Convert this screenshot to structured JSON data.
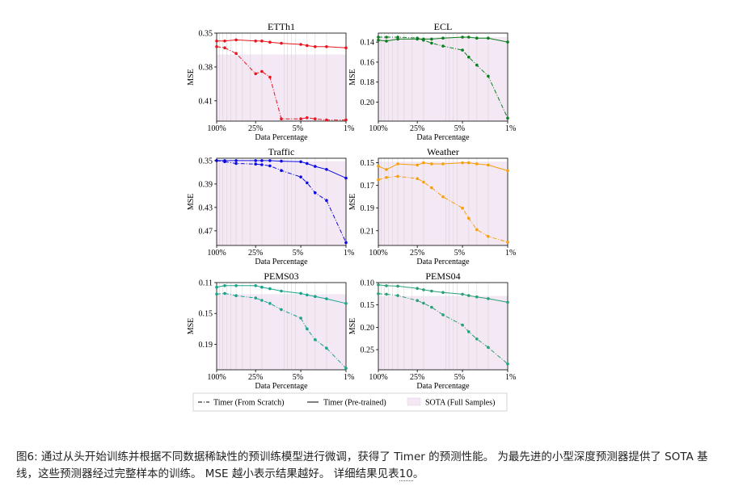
{
  "figure": {
    "legend": {
      "scratch": "Timer (From Scratch)",
      "pretrained": "Timer (Pre-trained)",
      "sota": "SOTA (Full Samples)"
    },
    "caption": {
      "prefix": "图6:  通过从头开始训练并根据不同数据稀缺性的预训练模型进行微调，获得了 Timer 的预测性能。 为最先进的小型深度预测器提供了 SOTA 基线，这些预测器经过完整样本的训练。 MSE 越小表示结果越好。 详细结果见表",
      "ref": "10",
      "suffix": "。"
    }
  },
  "chart_data": [
    {
      "type": "line",
      "title": "ETTh1",
      "color": "#e8141e",
      "xlabel": "Data Percentage",
      "ylabel": "MSE",
      "x_ticks": [
        "100%",
        "25%",
        "5%",
        "1%"
      ],
      "y_ticks": [
        0.35,
        0.38,
        0.41
      ],
      "ylim": [
        0.35,
        0.428
      ],
      "y_inverted": true,
      "sota": 0.369,
      "x": [
        100,
        75,
        50,
        25,
        20,
        15,
        10,
        5,
        4,
        3,
        2,
        1
      ],
      "series": [
        {
          "name": "Timer (From Scratch)",
          "style": "dashed",
          "values": [
            0.362,
            0.363,
            0.368,
            0.386,
            0.384,
            0.389,
            0.426,
            0.426,
            0.425,
            0.426,
            0.427,
            0.427
          ]
        },
        {
          "name": "Timer (Pre-trained)",
          "style": "solid",
          "values": [
            0.357,
            0.357,
            0.356,
            0.357,
            0.357,
            0.358,
            0.359,
            0.36,
            0.361,
            0.362,
            0.362,
            0.363
          ]
        }
      ]
    },
    {
      "type": "line",
      "title": "ECL",
      "color": "#0a7d1e",
      "xlabel": "Data Percentage",
      "ylabel": "MSE",
      "x_ticks": [
        "100%",
        "25%",
        "5%",
        "1%"
      ],
      "y_ticks": [
        0.14,
        0.16,
        0.18,
        0.2
      ],
      "ylim": [
        0.131,
        0.219
      ],
      "y_inverted": true,
      "sota": 0.135,
      "x": [
        100,
        75,
        50,
        25,
        20,
        15,
        10,
        5,
        4,
        3,
        2,
        1
      ],
      "series": [
        {
          "name": "Timer (From Scratch)",
          "style": "dashed",
          "values": [
            0.135,
            0.135,
            0.135,
            0.136,
            0.138,
            0.141,
            0.144,
            0.148,
            0.155,
            0.163,
            0.174,
            0.216
          ]
        },
        {
          "name": "Timer (Pre-trained)",
          "style": "solid",
          "values": [
            0.138,
            0.139,
            0.137,
            0.137,
            0.137,
            0.137,
            0.136,
            0.135,
            0.135,
            0.136,
            0.136,
            0.14
          ]
        }
      ]
    },
    {
      "type": "line",
      "title": "Traffic",
      "color": "#0a0ae0",
      "xlabel": "Data Percentage",
      "ylabel": "MSE",
      "x_ticks": [
        "100%",
        "25%",
        "5%",
        "1%"
      ],
      "y_ticks": [
        0.35,
        0.39,
        0.43,
        0.47
      ],
      "ylim": [
        0.346,
        0.495
      ],
      "y_inverted": true,
      "sota": 0.351,
      "x": [
        100,
        75,
        50,
        25,
        20,
        15,
        10,
        5,
        4,
        3,
        2,
        1
      ],
      "series": [
        {
          "name": "Timer (From Scratch)",
          "style": "dashed",
          "values": [
            0.35,
            0.352,
            0.355,
            0.356,
            0.357,
            0.359,
            0.367,
            0.378,
            0.388,
            0.405,
            0.418,
            0.49
          ]
        },
        {
          "name": "Timer (Pre-trained)",
          "style": "solid",
          "values": [
            0.35,
            0.35,
            0.35,
            0.35,
            0.35,
            0.35,
            0.351,
            0.352,
            0.355,
            0.36,
            0.365,
            0.38
          ]
        }
      ]
    },
    {
      "type": "line",
      "title": "Weather",
      "color": "#f5a00a",
      "xlabel": "Data Percentage",
      "ylabel": "MSE",
      "x_ticks": [
        "100%",
        "25%",
        "5%",
        "1%"
      ],
      "y_ticks": [
        0.15,
        0.17,
        0.19,
        0.21
      ],
      "ylim": [
        0.146,
        0.223
      ],
      "y_inverted": true,
      "sota": 0.149,
      "x": [
        100,
        75,
        50,
        25,
        20,
        15,
        10,
        5,
        4,
        3,
        2,
        1
      ],
      "series": [
        {
          "name": "Timer (From Scratch)",
          "style": "dashed",
          "values": [
            0.165,
            0.163,
            0.162,
            0.164,
            0.167,
            0.172,
            0.18,
            0.19,
            0.199,
            0.209,
            0.215,
            0.22
          ]
        },
        {
          "name": "Timer (Pre-trained)",
          "style": "solid",
          "values": [
            0.153,
            0.156,
            0.151,
            0.152,
            0.15,
            0.151,
            0.151,
            0.15,
            0.15,
            0.151,
            0.152,
            0.157
          ]
        }
      ]
    },
    {
      "type": "line",
      "title": "PEMS03",
      "color": "#1aa38c",
      "xlabel": "Data Percentage",
      "ylabel": "MSE",
      "x_ticks": [
        "100%",
        "25%",
        "5%",
        "1%"
      ],
      "y_ticks": [
        0.11,
        0.15,
        0.19
      ],
      "ylim": [
        0.11,
        0.223
      ],
      "y_inverted": true,
      "sota": 0.125,
      "x": [
        100,
        75,
        50,
        25,
        20,
        15,
        10,
        5,
        4,
        3,
        2,
        1
      ],
      "series": [
        {
          "name": "Timer (From Scratch)",
          "style": "dashed",
          "values": [
            0.125,
            0.124,
            0.127,
            0.13,
            0.133,
            0.137,
            0.145,
            0.156,
            0.17,
            0.184,
            0.195,
            0.221
          ]
        },
        {
          "name": "Timer (Pre-trained)",
          "style": "solid",
          "values": [
            0.116,
            0.114,
            0.114,
            0.114,
            0.116,
            0.118,
            0.121,
            0.124,
            0.126,
            0.128,
            0.131,
            0.137
          ]
        }
      ]
    },
    {
      "type": "line",
      "title": "PEMS04",
      "color": "#2aa078",
      "xlabel": "Data Percentage",
      "ylabel": "MSE",
      "x_ticks": [
        "100%",
        "25%",
        "5%",
        "1%"
      ],
      "y_ticks": [
        0.1,
        0.15,
        0.2,
        0.25
      ],
      "ylim": [
        0.1,
        0.295
      ],
      "y_inverted": true,
      "sota": 0.13,
      "x": [
        100,
        75,
        50,
        25,
        20,
        15,
        10,
        5,
        4,
        3,
        2,
        1
      ],
      "series": [
        {
          "name": "Timer (From Scratch)",
          "style": "dashed",
          "values": [
            0.125,
            0.126,
            0.129,
            0.14,
            0.146,
            0.155,
            0.172,
            0.195,
            0.21,
            0.226,
            0.245,
            0.282
          ]
        },
        {
          "name": "Timer (Pre-trained)",
          "style": "solid",
          "values": [
            0.105,
            0.107,
            0.108,
            0.113,
            0.116,
            0.119,
            0.122,
            0.126,
            0.129,
            0.132,
            0.136,
            0.144
          ]
        }
      ]
    }
  ]
}
